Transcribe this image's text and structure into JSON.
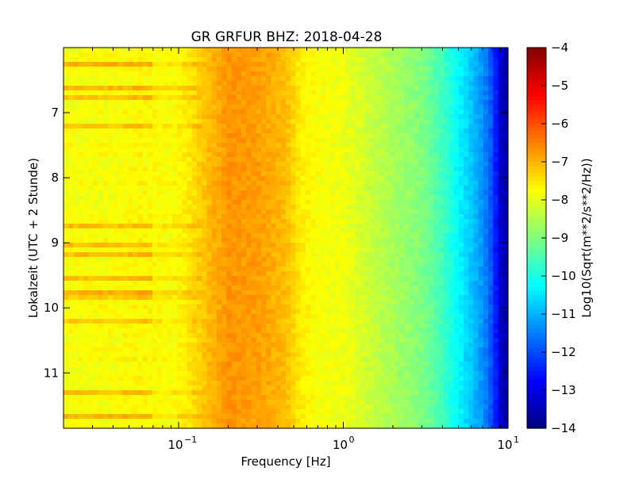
{
  "chart_data": {
    "type": "heatmap",
    "title": "GR GRFUR BHZ: 2018-04-28",
    "xlabel": "Frequency [Hz]",
    "ylabel": "Lokalzeit (UTC + 2 Stunde)",
    "colorbar_label": "Log10(Sqrt(m**2/s**2/Hz))",
    "x_scale": "log",
    "xlim": [
      0.02,
      10
    ],
    "x_ticks": [
      {
        "value": 0.1,
        "base": "10",
        "exp": "−1"
      },
      {
        "value": 1,
        "base": "10",
        "exp": "0"
      },
      {
        "value": 10,
        "base": "10",
        "exp": "1"
      }
    ],
    "ylim": [
      6.0,
      11.85
    ],
    "y_inverted": true,
    "y_ticks": [
      "7",
      "8",
      "9",
      "10",
      "11"
    ],
    "y_tick_values": [
      7,
      8,
      9,
      10,
      11
    ],
    "clim": [
      -14,
      -4
    ],
    "colorbar_ticks": [
      "−4",
      "−5",
      "−6",
      "−7",
      "−8",
      "−9",
      "−10",
      "−11",
      "−12",
      "−13",
      "−14"
    ],
    "colorbar_tick_values": [
      -4,
      -5,
      -6,
      -7,
      -8,
      -9,
      -10,
      -11,
      -12,
      -13,
      -14
    ],
    "colormap": "jet",
    "spectrum_profile": {
      "frequency_hz": [
        0.02,
        0.04,
        0.06,
        0.09,
        0.12,
        0.15,
        0.2,
        0.3,
        0.45,
        0.55,
        0.7,
        1.0,
        1.5,
        2.0,
        3.0,
        4.0,
        5.0,
        6.0,
        7.0,
        8.0,
        9.0,
        10.0
      ],
      "log10_amplitude": [
        -7.8,
        -7.8,
        -7.7,
        -7.8,
        -7.5,
        -7.1,
        -6.7,
        -6.8,
        -7.1,
        -7.6,
        -7.8,
        -7.9,
        -8.3,
        -8.6,
        -9.0,
        -9.6,
        -10.3,
        -10.8,
        -11.3,
        -12.0,
        -13.2,
        -13.8
      ]
    }
  }
}
